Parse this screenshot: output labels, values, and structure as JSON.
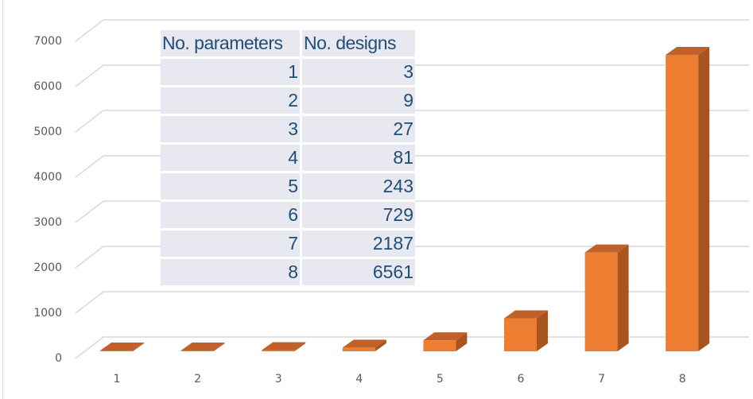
{
  "chart_data": {
    "type": "bar",
    "style": "3d-column",
    "title": "",
    "xlabel": "",
    "ylabel": "",
    "categories": [
      "1",
      "2",
      "3",
      "4",
      "5",
      "6",
      "7",
      "8"
    ],
    "values": [
      3,
      9,
      27,
      81,
      243,
      729,
      2187,
      6561
    ],
    "series": [
      {
        "name": "No. designs",
        "values": [
          3,
          9,
          27,
          81,
          243,
          729,
          2187,
          6561
        ],
        "color": "#ed7d31"
      }
    ],
    "ylim": [
      0,
      7000
    ],
    "yticks": [
      "0",
      "1000",
      "2000",
      "3000",
      "4000",
      "5000",
      "6000",
      "7000"
    ],
    "grid": true,
    "legend": "none",
    "colors": {
      "bar_front": "#ed7d31",
      "bar_side": "#a9541f",
      "bar_top": "#c0612a",
      "grid": "#d9d9d9",
      "tick_text": "#595959"
    }
  },
  "table": {
    "headers": [
      "No. parameters",
      "No. designs"
    ],
    "rows": [
      [
        "1",
        "3"
      ],
      [
        "2",
        "9"
      ],
      [
        "3",
        "27"
      ],
      [
        "4",
        "81"
      ],
      [
        "5",
        "243"
      ],
      [
        "6",
        "729"
      ],
      [
        "7",
        "2187"
      ],
      [
        "8",
        "6561"
      ]
    ],
    "colors": {
      "cell_bg": "#e8e8f0",
      "text": "#1f4e79"
    }
  }
}
